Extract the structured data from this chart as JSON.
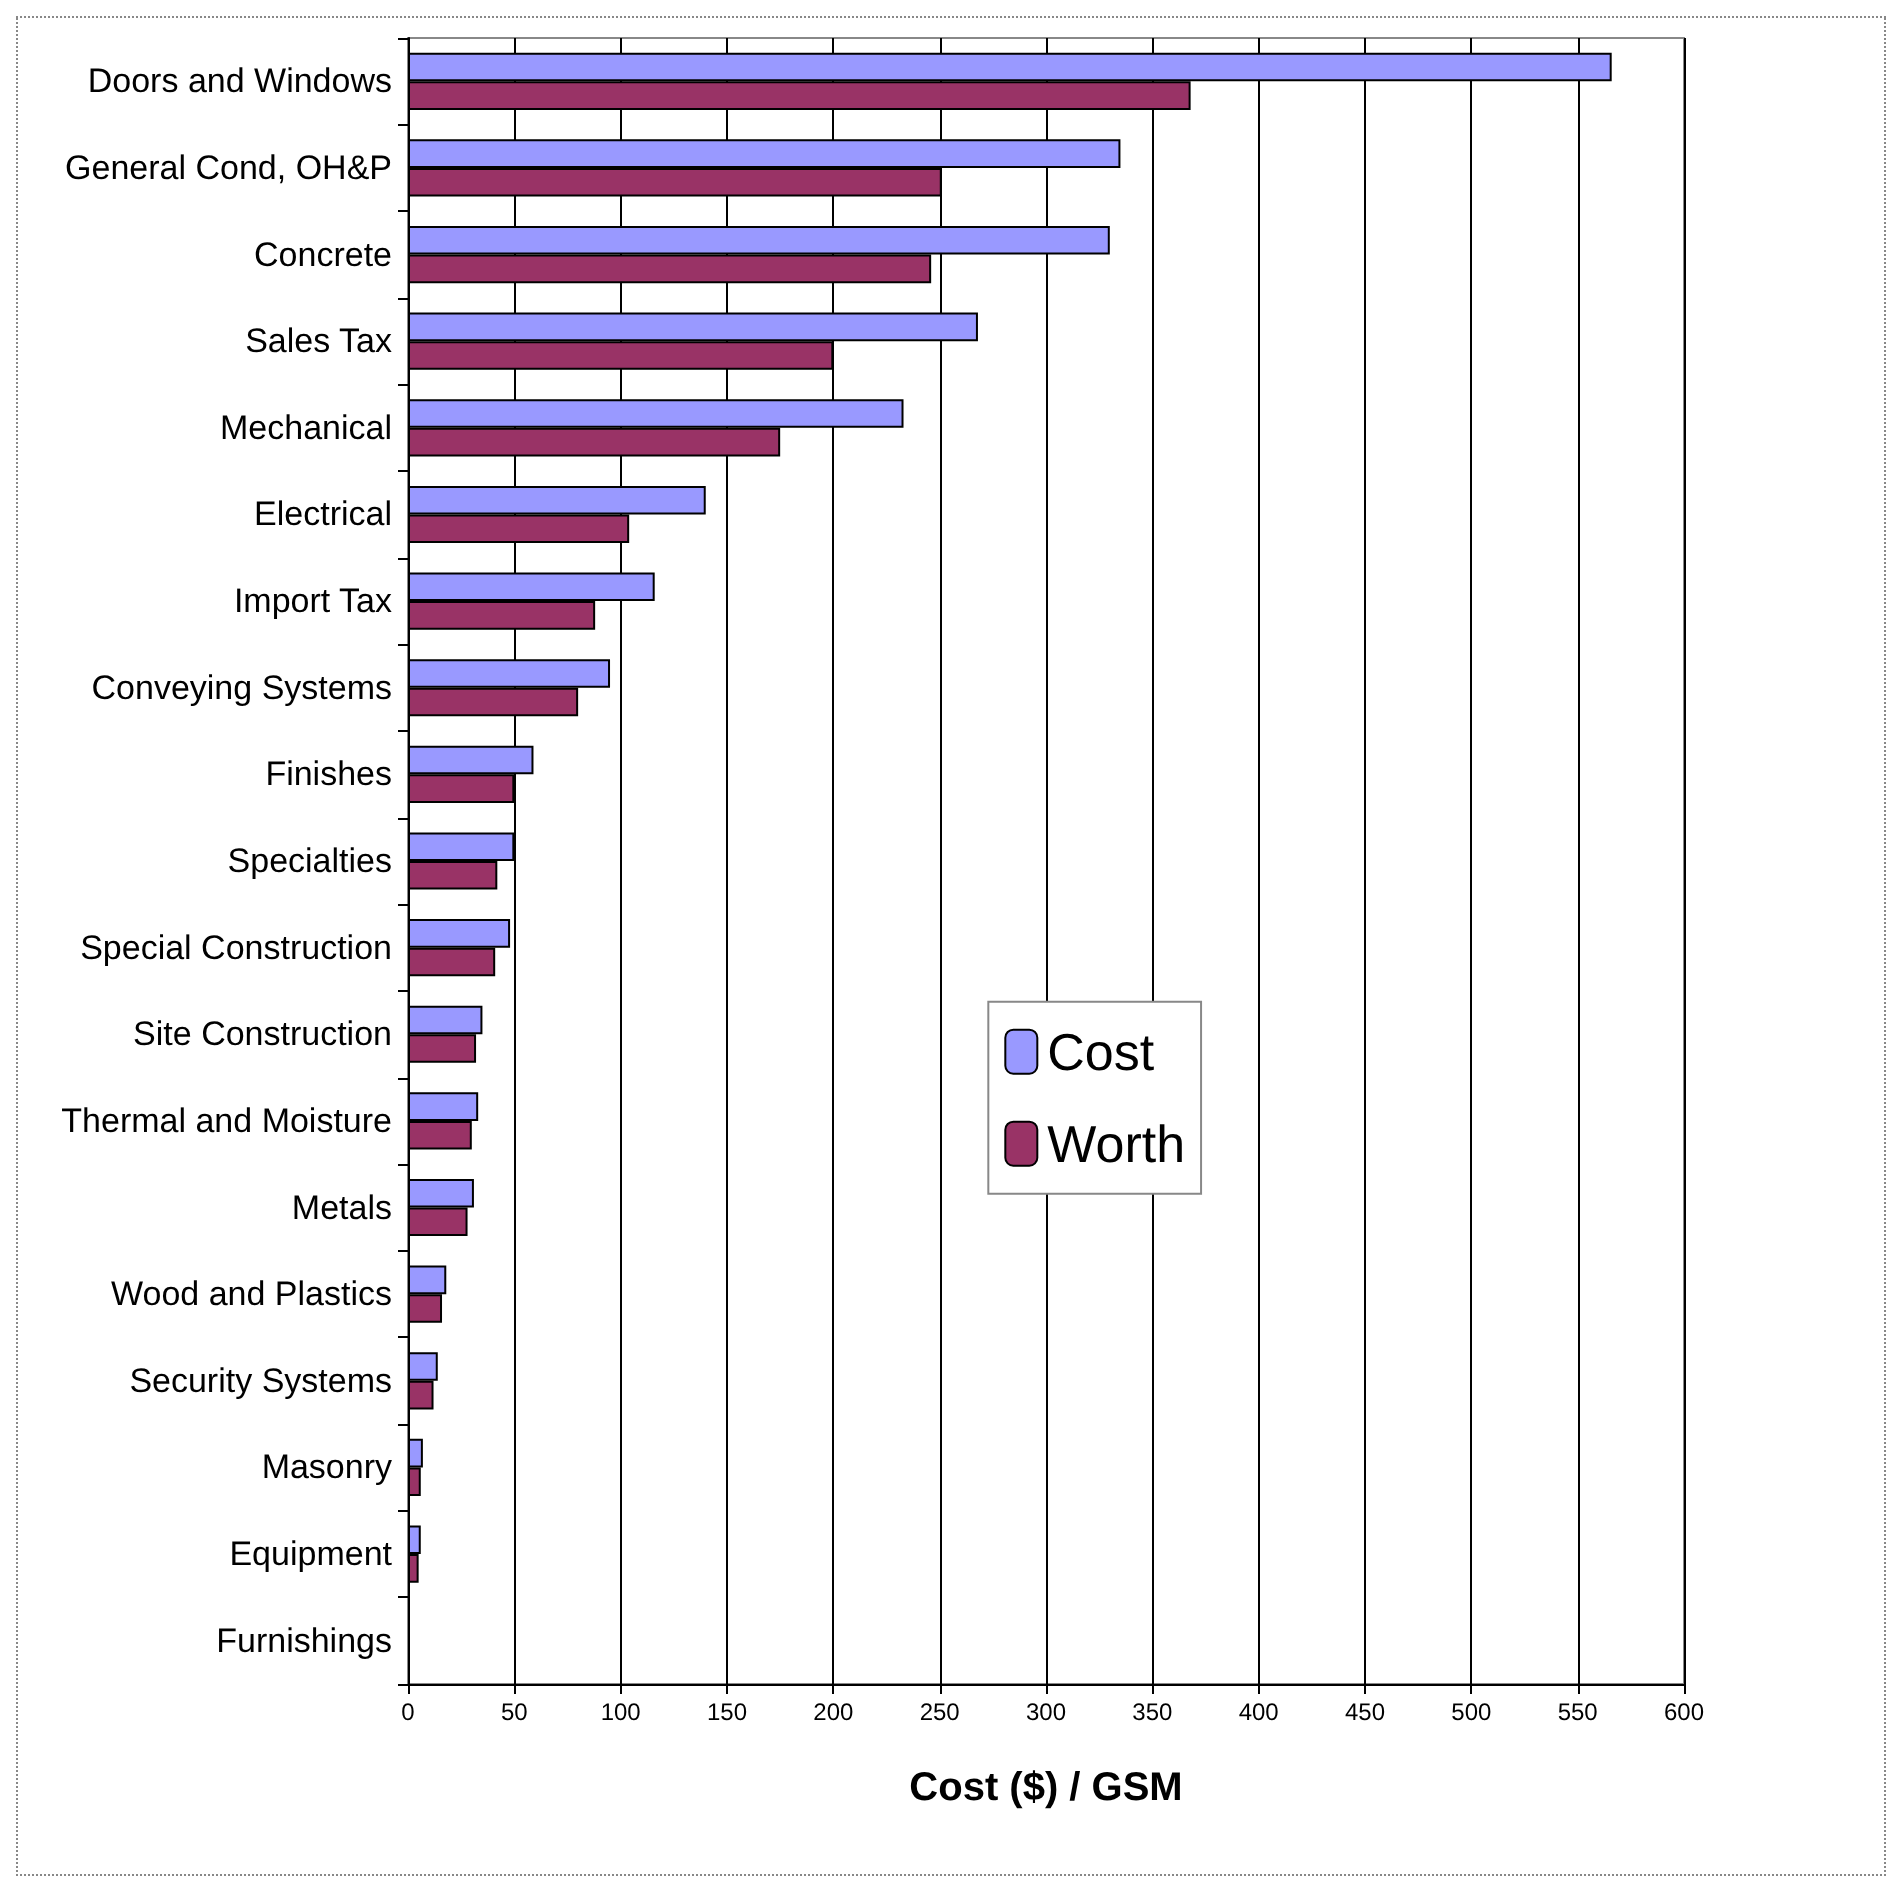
{
  "chart_data": {
    "type": "bar",
    "orientation": "horizontal",
    "xlabel": "Cost ($) / GSM",
    "categories": [
      "Doors and Windows",
      "General Cond, OH&P",
      "Concrete",
      "Sales Tax",
      "Mechanical",
      "Electrical",
      "Import Tax",
      "Conveying Systems",
      "Finishes",
      "Specialties",
      "Special Construction",
      "Site Construction",
      "Thermal and Moisture",
      "Metals",
      "Wood and Plastics",
      "Security Systems",
      "Masonry",
      "Equipment",
      "Furnishings"
    ],
    "series": [
      {
        "name": "Cost",
        "color": "#9999ff",
        "values": [
          566,
          335,
          330,
          268,
          233,
          140,
          116,
          95,
          59,
          50,
          48,
          35,
          33,
          31,
          18,
          14,
          7,
          6,
          0
        ]
      },
      {
        "name": "Worth",
        "color": "#993366",
        "values": [
          368,
          251,
          246,
          200,
          175,
          104,
          88,
          80,
          50,
          42,
          41,
          32,
          30,
          28,
          16,
          12,
          6,
          5,
          0
        ]
      }
    ],
    "xlim": [
      0,
      600
    ],
    "xticks": [
      0,
      50,
      100,
      150,
      200,
      250,
      300,
      350,
      400,
      450,
      500,
      550,
      600
    ],
    "grid": "x",
    "legend": "center right"
  }
}
